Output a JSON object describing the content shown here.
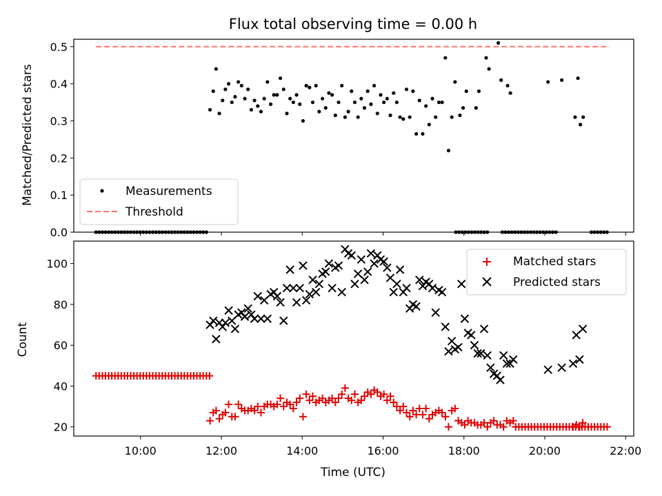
{
  "chart_data": [
    {
      "type": "scatter",
      "title": "Flux total observing time = 0.00 h",
      "ylabel": "Matched/Predicted stars",
      "xlim": [
        8.35,
        22.2
      ],
      "ylim": [
        0,
        0.52
      ],
      "yticks": [
        0.0,
        0.1,
        0.2,
        0.3,
        0.4,
        0.5
      ],
      "ytick_labels": [
        "0.0",
        "0.1",
        "0.2",
        "0.3",
        "0.4",
        "0.5"
      ],
      "legend": [
        "Measurements",
        "Threshold"
      ],
      "threshold": {
        "name": "Threshold",
        "y": 0.5,
        "x_range": [
          8.9,
          21.6
        ],
        "color": "#ff7070"
      },
      "zero_segments": [
        [
          8.9,
          11.7
        ],
        [
          17.8,
          18.6
        ],
        [
          18.95,
          20.35
        ],
        [
          21.15,
          21.6
        ]
      ],
      "series": {
        "name": "Measurements",
        "x": [
          11.72,
          11.8,
          11.87,
          11.95,
          12.03,
          12.1,
          12.18,
          12.26,
          12.34,
          12.42,
          12.5,
          12.58,
          12.66,
          12.74,
          12.82,
          12.9,
          12.98,
          13.06,
          13.14,
          13.22,
          13.3,
          13.38,
          13.46,
          13.54,
          13.62,
          13.7,
          13.78,
          13.86,
          13.94,
          14.02,
          14.1,
          14.18,
          14.26,
          14.34,
          14.42,
          14.5,
          14.58,
          14.66,
          14.74,
          14.82,
          14.9,
          14.98,
          15.06,
          15.14,
          15.22,
          15.3,
          15.38,
          15.46,
          15.54,
          15.62,
          15.7,
          15.78,
          15.86,
          15.94,
          16.02,
          16.1,
          16.18,
          16.26,
          16.34,
          16.42,
          16.5,
          16.58,
          16.66,
          16.74,
          16.82,
          16.9,
          16.98,
          17.06,
          17.14,
          17.22,
          17.3,
          17.38,
          17.46,
          17.54,
          17.62,
          17.7,
          17.78,
          17.9,
          17.98,
          18.06,
          18.3,
          18.37,
          18.55,
          18.62,
          18.85,
          18.92,
          19.08,
          19.15,
          20.08,
          20.42,
          20.75,
          20.82,
          20.88,
          20.95
        ],
        "y": [
          0.33,
          0.38,
          0.44,
          0.32,
          0.355,
          0.385,
          0.4,
          0.35,
          0.365,
          0.405,
          0.395,
          0.36,
          0.385,
          0.33,
          0.355,
          0.34,
          0.325,
          0.36,
          0.405,
          0.345,
          0.37,
          0.37,
          0.415,
          0.385,
          0.32,
          0.36,
          0.35,
          0.37,
          0.345,
          0.3,
          0.395,
          0.39,
          0.35,
          0.395,
          0.325,
          0.36,
          0.335,
          0.375,
          0.37,
          0.315,
          0.35,
          0.395,
          0.31,
          0.325,
          0.38,
          0.35,
          0.31,
          0.36,
          0.335,
          0.38,
          0.345,
          0.395,
          0.32,
          0.37,
          0.35,
          0.36,
          0.315,
          0.375,
          0.35,
          0.31,
          0.305,
          0.385,
          0.31,
          0.38,
          0.265,
          0.355,
          0.265,
          0.34,
          0.29,
          0.36,
          0.31,
          0.35,
          0.35,
          0.47,
          0.22,
          0.31,
          0.405,
          0.315,
          0.335,
          0.38,
          0.335,
          0.38,
          0.47,
          0.44,
          0.51,
          0.41,
          0.395,
          0.375,
          0.405,
          0.41,
          0.31,
          0.415,
          0.29,
          0.31
        ]
      }
    },
    {
      "type": "scatter",
      "xlabel": "Time (UTC)",
      "ylabel": "Count",
      "xlim": [
        8.35,
        22.2
      ],
      "ylim": [
        15.5,
        111
      ],
      "yticks": [
        20,
        40,
        60,
        80,
        100
      ],
      "ytick_labels": [
        "20",
        "40",
        "60",
        "80",
        "100"
      ],
      "xticks": [
        10,
        12,
        14,
        16,
        18,
        20,
        22
      ],
      "xtick_labels": [
        "10:00",
        "12:00",
        "14:00",
        "16:00",
        "18:00",
        "20:00",
        "22:00"
      ],
      "legend": [
        "Matched stars",
        "Predicted stars"
      ],
      "series": [
        {
          "name": "Matched stars",
          "marker": "+",
          "color": "#e00000",
          "x": [
            11.72,
            11.8,
            11.87,
            11.95,
            12.03,
            12.1,
            12.18,
            12.26,
            12.34,
            12.42,
            12.5,
            12.58,
            12.66,
            12.74,
            12.82,
            12.9,
            12.98,
            13.06,
            13.14,
            13.22,
            13.3,
            13.38,
            13.46,
            13.54,
            13.62,
            13.7,
            13.78,
            13.86,
            13.94,
            14.02,
            14.1,
            14.18,
            14.26,
            14.34,
            14.42,
            14.5,
            14.58,
            14.66,
            14.74,
            14.82,
            14.9,
            14.98,
            15.06,
            15.14,
            15.22,
            15.3,
            15.38,
            15.46,
            15.54,
            15.62,
            15.7,
            15.78,
            15.86,
            15.94,
            16.02,
            16.1,
            16.18,
            16.26,
            16.34,
            16.42,
            16.5,
            16.58,
            16.66,
            16.74,
            16.82,
            16.9,
            16.98,
            17.06,
            17.14,
            17.22,
            17.3,
            17.38,
            17.46,
            17.54,
            17.62,
            17.7,
            17.78,
            17.86,
            17.94,
            18.02,
            18.1,
            18.18,
            18.26,
            18.34,
            18.42,
            18.5,
            18.58,
            18.66,
            18.74,
            18.82,
            18.9,
            18.98,
            19.06,
            19.14,
            19.22,
            20.7,
            20.78,
            20.86,
            20.94
          ],
          "y": [
            23,
            27,
            28,
            24,
            26,
            27,
            31,
            25,
            25,
            31,
            29,
            28,
            28,
            29,
            28,
            30,
            27,
            30,
            31,
            31,
            30,
            31,
            34,
            30,
            32,
            31,
            29,
            32,
            34,
            25,
            36,
            33,
            35,
            32,
            33,
            34,
            32,
            33,
            34,
            32,
            34,
            36,
            39,
            34,
            33,
            36,
            32,
            33,
            35,
            37,
            36,
            38,
            37,
            35,
            36,
            33,
            35,
            32,
            30,
            28,
            30,
            27,
            25,
            28,
            26,
            29,
            26,
            29,
            24,
            26,
            27,
            28,
            27,
            25,
            20,
            28,
            29,
            23,
            22,
            21,
            23,
            22,
            22,
            21,
            21,
            22,
            20,
            22,
            23,
            21,
            21,
            20,
            23,
            22,
            23,
            20,
            21,
            20,
            22
          ],
          "constant_segments": [
            {
              "y": 45,
              "x_range": [
                8.9,
                11.72
              ]
            },
            {
              "y": 20,
              "x_range": [
                19.28,
                21.6
              ]
            }
          ]
        },
        {
          "name": "Predicted stars",
          "marker": "x",
          "color": "#000000",
          "x": [
            11.72,
            11.8,
            11.87,
            11.95,
            12.03,
            12.1,
            12.18,
            12.26,
            12.34,
            12.42,
            12.5,
            12.58,
            12.66,
            12.74,
            12.82,
            12.9,
            12.98,
            13.06,
            13.14,
            13.22,
            13.3,
            13.38,
            13.46,
            13.54,
            13.62,
            13.7,
            13.78,
            13.86,
            13.94,
            14.02,
            14.1,
            14.18,
            14.26,
            14.34,
            14.42,
            14.5,
            14.58,
            14.66,
            14.74,
            14.82,
            14.9,
            14.98,
            15.06,
            15.14,
            15.22,
            15.3,
            15.38,
            15.46,
            15.54,
            15.62,
            15.7,
            15.78,
            15.86,
            15.94,
            16.02,
            16.1,
            16.18,
            16.26,
            16.34,
            16.42,
            16.5,
            16.58,
            16.66,
            16.74,
            16.82,
            16.9,
            16.98,
            17.06,
            17.14,
            17.22,
            17.3,
            17.38,
            17.46,
            17.54,
            17.62,
            17.7,
            17.78,
            17.86,
            17.94,
            18.02,
            18.1,
            18.18,
            18.26,
            18.34,
            18.42,
            18.5,
            18.58,
            18.66,
            18.74,
            18.82,
            18.9,
            18.98,
            19.06,
            19.14,
            19.22,
            20.08,
            20.42,
            20.7,
            20.78,
            20.86,
            20.94
          ],
          "y": [
            70,
            72,
            63,
            71,
            69,
            71,
            77,
            72,
            68,
            75,
            76,
            74,
            78,
            75,
            73,
            84,
            73,
            82,
            73,
            85,
            86,
            84,
            81,
            72,
            88,
            97,
            88,
            81,
            88,
            99,
            82,
            85,
            92,
            86,
            90,
            95,
            96,
            100,
            88,
            98,
            99,
            86,
            107,
            105,
            104,
            90,
            95,
            102,
            92,
            96,
            105,
            100,
            104,
            102,
            101,
            98,
            93,
            86,
            90,
            97,
            86,
            88,
            78,
            80,
            79,
            92,
            89,
            91,
            90,
            88,
            76,
            87,
            86,
            69,
            57,
            62,
            58,
            59,
            90,
            73,
            66,
            65,
            60,
            56,
            56,
            68,
            55,
            49,
            46,
            45,
            43,
            55,
            51,
            51,
            53,
            48,
            49,
            51,
            65,
            53,
            68
          ]
        }
      ]
    }
  ]
}
